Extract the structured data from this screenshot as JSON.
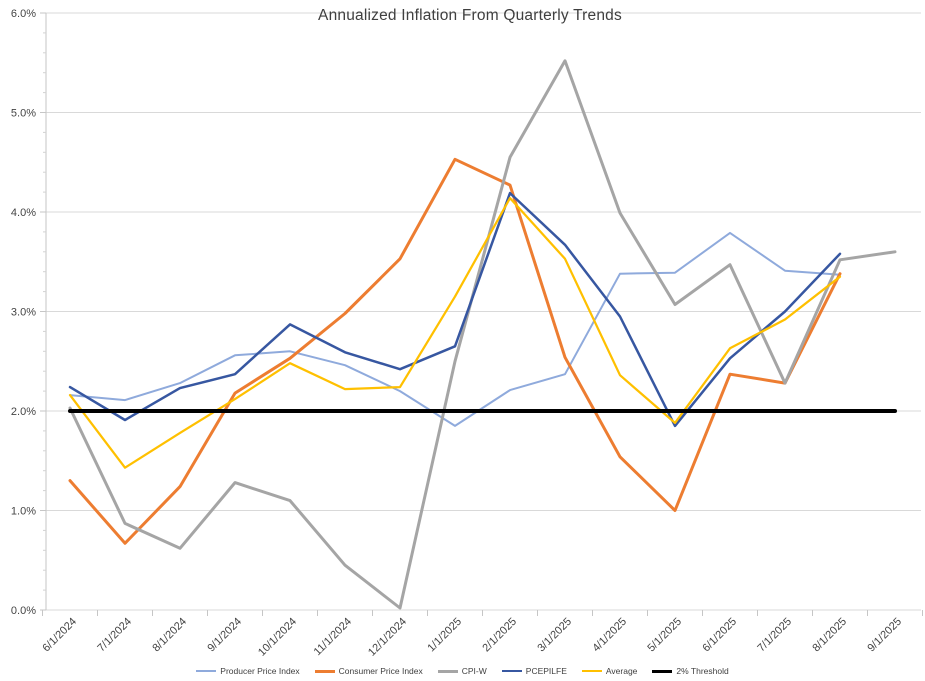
{
  "chart_data": {
    "type": "line",
    "title": "Annualized Inflation From Quarterly Trends",
    "categories": [
      "6/1/2024",
      "7/1/2024",
      "8/1/2024",
      "9/1/2024",
      "10/1/2024",
      "11/1/2024",
      "12/1/2024",
      "1/1/2025",
      "2/1/2025",
      "3/1/2025",
      "4/1/2025",
      "5/1/2025",
      "6/1/2025",
      "7/1/2025",
      "8/1/2025",
      "9/1/2025"
    ],
    "y_axis": {
      "min": 0,
      "max": 6,
      "major_step": 1,
      "minor_step": 0.2,
      "tick_labels": [
        "0.0%",
        "1.0%",
        "2.0%",
        "3.0%",
        "4.0%",
        "5.0%",
        "6.0%"
      ]
    },
    "grid": "horizontal",
    "legend_position": "bottom",
    "series": [
      {
        "name": "Producer Price Index",
        "color": "#8FAADC",
        "line_width": 2,
        "values": [
          2.16,
          2.11,
          2.28,
          2.56,
          2.6,
          2.46,
          2.2,
          1.85,
          2.21,
          2.37,
          3.38,
          3.39,
          3.79,
          3.41,
          3.37,
          null
        ]
      },
      {
        "name": "Consumer Price Index",
        "color": "#ED7D31",
        "line_width": 3,
        "values": [
          1.3,
          0.67,
          1.24,
          2.18,
          2.53,
          2.98,
          3.53,
          4.53,
          4.27,
          2.54,
          1.54,
          1.0,
          2.37,
          2.28,
          3.38,
          null
        ]
      },
      {
        "name": "CPI-W",
        "color": "#A5A5A5",
        "line_width": 3,
        "values": [
          2.03,
          0.87,
          0.62,
          1.28,
          1.1,
          0.45,
          0.02,
          2.5,
          4.55,
          5.52,
          3.99,
          3.07,
          3.47,
          2.28,
          3.52,
          3.6
        ]
      },
      {
        "name": "PCEPILFE",
        "color": "#3757A1",
        "line_width": 2.5,
        "values": [
          2.24,
          1.91,
          2.23,
          2.37,
          2.87,
          2.59,
          2.42,
          2.65,
          4.19,
          3.67,
          2.95,
          1.85,
          2.53,
          3.0,
          3.58,
          null
        ]
      },
      {
        "name": "Average",
        "color": "#FFC000",
        "line_width": 2.25,
        "values": [
          2.16,
          1.43,
          1.78,
          2.12,
          2.48,
          2.22,
          2.24,
          3.15,
          4.14,
          3.53,
          2.36,
          1.88,
          2.63,
          2.92,
          3.35,
          null
        ]
      },
      {
        "name": "2% Threshold",
        "color": "#000000",
        "line_width": 4,
        "values": [
          2,
          2,
          2,
          2,
          2,
          2,
          2,
          2,
          2,
          2,
          2,
          2,
          2,
          2,
          2,
          2
        ]
      }
    ]
  }
}
